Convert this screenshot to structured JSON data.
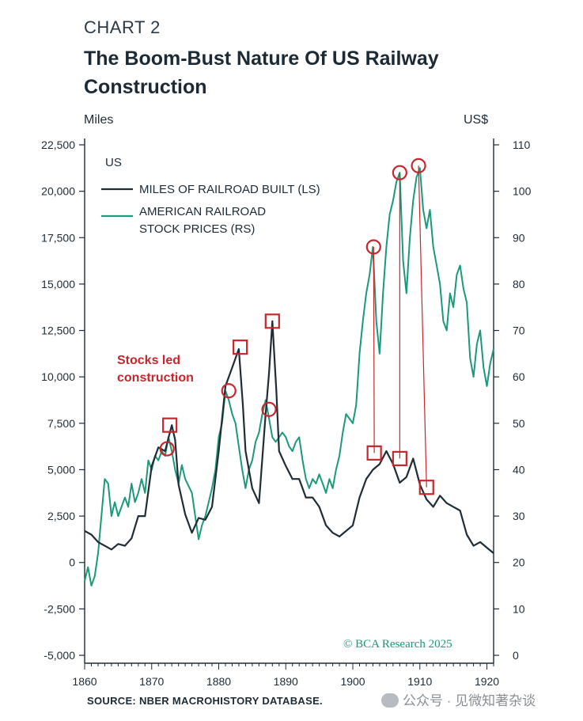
{
  "header": {
    "chart_label": "CHART 2",
    "title": "The Boom-Bust Nature Of US Railway Construction"
  },
  "colors": {
    "miles_line": "#1f2d36",
    "stock_line": "#1a9a78",
    "annotation": "#c8262c",
    "axis": "#1d2b36"
  },
  "footer": {
    "source": "SOURCE: NBER MACROHISTORY DATABASE.",
    "credit": "© BCA Research 2025",
    "watermark": "公众号 · 见微知著杂谈"
  },
  "chart_data": {
    "type": "line",
    "title": "The Boom-Bust Nature Of US Railway Construction",
    "region_label": "US",
    "left_axis": {
      "unit": "Miles",
      "range": [
        -5000,
        22500
      ],
      "ticks": [
        -5000,
        -2500,
        0,
        2500,
        5000,
        7500,
        10000,
        12500,
        15000,
        17500,
        20000,
        22500
      ],
      "tick_labels": [
        "-5,000",
        "-2,500",
        "0",
        "2,500",
        "5,000",
        "7,500",
        "10,000",
        "12,500",
        "15,000",
        "17,500",
        "20,000",
        "22,500"
      ]
    },
    "right_axis": {
      "unit": "US$",
      "range": [
        0,
        110
      ],
      "ticks": [
        0,
        10,
        20,
        30,
        40,
        50,
        60,
        70,
        80,
        90,
        100,
        110
      ],
      "tick_labels": [
        "0",
        "10",
        "20",
        "30",
        "40",
        "50",
        "60",
        "70",
        "80",
        "90",
        "100",
        "110"
      ]
    },
    "x_axis": {
      "range": [
        1860,
        1921
      ],
      "ticks": [
        1860,
        1870,
        1880,
        1890,
        1900,
        1910,
        1920
      ],
      "tick_labels": [
        "1860",
        "1870",
        "1880",
        "1890",
        "1900",
        "1910",
        "1920"
      ]
    },
    "series": [
      {
        "name": "MILES OF RAILROAD BUILT (LS)",
        "axis": "left",
        "points": [
          [
            1860,
            1700
          ],
          [
            1861,
            1500
          ],
          [
            1862,
            1100
          ],
          [
            1863,
            900
          ],
          [
            1864,
            700
          ],
          [
            1865,
            1000
          ],
          [
            1866,
            900
          ],
          [
            1867,
            1300
          ],
          [
            1868,
            2500
          ],
          [
            1869,
            2500
          ],
          [
            1870,
            5200
          ],
          [
            1871,
            6200
          ],
          [
            1872,
            6000
          ],
          [
            1872.5,
            6700
          ],
          [
            1873,
            7400
          ],
          [
            1873.5,
            6600
          ],
          [
            1874,
            4200
          ],
          [
            1875,
            2600
          ],
          [
            1876,
            1600
          ],
          [
            1877,
            2400
          ],
          [
            1878,
            2300
          ],
          [
            1879,
            3000
          ],
          [
            1880,
            6000
          ],
          [
            1881,
            9500
          ],
          [
            1882,
            10500
          ],
          [
            1883,
            11500
          ],
          [
            1883.6,
            8500
          ],
          [
            1884,
            6000
          ],
          [
            1885,
            4000
          ],
          [
            1886,
            3200
          ],
          [
            1887,
            8000
          ],
          [
            1887.5,
            10200
          ],
          [
            1888,
            13000
          ],
          [
            1888.6,
            9200
          ],
          [
            1889,
            6000
          ],
          [
            1890,
            5200
          ],
          [
            1891,
            4500
          ],
          [
            1892,
            4500
          ],
          [
            1893,
            3500
          ],
          [
            1894,
            3500
          ],
          [
            1895,
            3000
          ],
          [
            1896,
            2000
          ],
          [
            1897,
            1600
          ],
          [
            1898,
            1400
          ],
          [
            1899,
            1700
          ],
          [
            1900,
            2000
          ],
          [
            1901,
            3500
          ],
          [
            1902,
            4500
          ],
          [
            1903,
            5000
          ],
          [
            1904,
            5300
          ],
          [
            1905,
            6000
          ],
          [
            1906,
            5300
          ],
          [
            1907,
            4300
          ],
          [
            1908,
            4600
          ],
          [
            1909,
            5600
          ],
          [
            1910,
            4200
          ],
          [
            1911,
            3400
          ],
          [
            1912,
            3000
          ],
          [
            1913,
            3600
          ],
          [
            1914,
            3200
          ],
          [
            1915,
            3000
          ],
          [
            1916,
            2800
          ],
          [
            1917,
            1500
          ],
          [
            1918,
            900
          ],
          [
            1919,
            1100
          ],
          [
            1920,
            800
          ],
          [
            1921,
            500
          ]
        ]
      },
      {
        "name": "AMERICAN RAILROAD STOCK PRICES (RS)",
        "axis": "right",
        "points": [
          [
            1860,
            16
          ],
          [
            1860.5,
            19
          ],
          [
            1861,
            15
          ],
          [
            1861.5,
            17
          ],
          [
            1862,
            22
          ],
          [
            1862.5,
            30
          ],
          [
            1863,
            38
          ],
          [
            1863.5,
            37
          ],
          [
            1864,
            30
          ],
          [
            1864.5,
            33
          ],
          [
            1865,
            30
          ],
          [
            1865.5,
            32
          ],
          [
            1866,
            34
          ],
          [
            1866.5,
            32
          ],
          [
            1867,
            37
          ],
          [
            1867.5,
            33
          ],
          [
            1868,
            35
          ],
          [
            1868.5,
            38
          ],
          [
            1869,
            35
          ],
          [
            1869.5,
            42
          ],
          [
            1870,
            40
          ],
          [
            1870.5,
            43
          ],
          [
            1871,
            42
          ],
          [
            1871.5,
            44
          ],
          [
            1872,
            43
          ],
          [
            1872.5,
            47
          ],
          [
            1873,
            44
          ],
          [
            1873.5,
            40
          ],
          [
            1874,
            37
          ],
          [
            1874.5,
            41
          ],
          [
            1875,
            38
          ],
          [
            1876,
            35
          ],
          [
            1876.5,
            30
          ],
          [
            1877,
            25
          ],
          [
            1877.5,
            28
          ],
          [
            1878,
            30
          ],
          [
            1878.5,
            33
          ],
          [
            1879,
            36
          ],
          [
            1879.5,
            40
          ],
          [
            1880,
            47
          ],
          [
            1880.5,
            50
          ],
          [
            1881,
            57
          ],
          [
            1881.5,
            55
          ],
          [
            1882,
            52
          ],
          [
            1882.5,
            50
          ],
          [
            1883,
            45
          ],
          [
            1883.5,
            40
          ],
          [
            1884,
            36
          ],
          [
            1884.5,
            40
          ],
          [
            1885,
            42
          ],
          [
            1885.5,
            46
          ],
          [
            1886,
            48
          ],
          [
            1886.5,
            52
          ],
          [
            1887,
            55
          ],
          [
            1887.5,
            51
          ],
          [
            1888,
            47
          ],
          [
            1888.5,
            46
          ],
          [
            1889,
            47
          ],
          [
            1889.5,
            48
          ],
          [
            1890,
            47
          ],
          [
            1890.5,
            45
          ],
          [
            1891,
            44
          ],
          [
            1891.5,
            46
          ],
          [
            1892,
            47
          ],
          [
            1892.5,
            42
          ],
          [
            1893,
            38
          ],
          [
            1893.5,
            36
          ],
          [
            1894,
            38
          ],
          [
            1894.5,
            37
          ],
          [
            1895,
            39
          ],
          [
            1895.5,
            37
          ],
          [
            1896,
            35
          ],
          [
            1896.5,
            38
          ],
          [
            1897,
            36
          ],
          [
            1897.5,
            40
          ],
          [
            1898,
            43
          ],
          [
            1898.5,
            48
          ],
          [
            1899,
            52
          ],
          [
            1899.5,
            51
          ],
          [
            1900,
            50
          ],
          [
            1900.5,
            54
          ],
          [
            1901,
            65
          ],
          [
            1901.5,
            72
          ],
          [
            1902,
            78
          ],
          [
            1902.5,
            82
          ],
          [
            1903,
            88
          ],
          [
            1903.5,
            72
          ],
          [
            1904,
            65
          ],
          [
            1904.5,
            78
          ],
          [
            1905,
            88
          ],
          [
            1905.5,
            95
          ],
          [
            1906,
            98
          ],
          [
            1906.5,
            102
          ],
          [
            1907,
            104
          ],
          [
            1907.5,
            85
          ],
          [
            1908,
            78
          ],
          [
            1908.5,
            90
          ],
          [
            1909,
            98
          ],
          [
            1909.5,
            103
          ],
          [
            1910,
            105
          ],
          [
            1910.5,
            96
          ],
          [
            1911,
            92
          ],
          [
            1911.5,
            96
          ],
          [
            1912,
            88
          ],
          [
            1912.5,
            84
          ],
          [
            1913,
            80
          ],
          [
            1913.5,
            72
          ],
          [
            1914,
            70
          ],
          [
            1914.5,
            78
          ],
          [
            1915,
            75
          ],
          [
            1915.5,
            82
          ],
          [
            1916,
            84
          ],
          [
            1916.5,
            79
          ],
          [
            1917,
            76
          ],
          [
            1917.5,
            64
          ],
          [
            1918,
            60
          ],
          [
            1918.5,
            67
          ],
          [
            1919,
            70
          ],
          [
            1919.5,
            62
          ],
          [
            1920,
            58
          ],
          [
            1920.5,
            63
          ],
          [
            1921,
            66
          ]
        ]
      }
    ],
    "annotations": {
      "text_lines": [
        "Stocks led",
        "construction"
      ],
      "square_markers": [
        [
          1872.7,
          7400
        ],
        [
          1883.2,
          11600
        ],
        [
          1888,
          13000
        ],
        [
          1903.2,
          5900
        ],
        [
          1907,
          5600
        ],
        [
          1911,
          4050
        ]
      ],
      "circle_markers_right": [
        [
          1872.3,
          44.5
        ],
        [
          1881.5,
          57
        ],
        [
          1887.5,
          53
        ],
        [
          1903.1,
          88
        ],
        [
          1907,
          104
        ],
        [
          1909.8,
          105.5
        ]
      ],
      "connectors": [
        [
          [
            1903.1,
            88
          ],
          [
            1903.2,
            5900
          ]
        ],
        [
          [
            1907,
            104
          ],
          [
            1907,
            5600
          ]
        ],
        [
          [
            1909.8,
            105.5
          ],
          [
            1911,
            4050
          ]
        ]
      ]
    }
  }
}
